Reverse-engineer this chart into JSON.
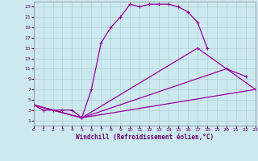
{
  "background_color": "#cce9f0",
  "line_color": "#990099",
  "marker": "+",
  "xlabel": "Windchill (Refroidissement éolien,°C)",
  "xlabel_color": "#660066",
  "tick_color": "#660066",
  "xlim": [
    0,
    23
  ],
  "ylim": [
    0,
    24
  ],
  "xticks": [
    0,
    1,
    2,
    3,
    4,
    5,
    6,
    7,
    8,
    9,
    10,
    11,
    12,
    13,
    14,
    15,
    16,
    17,
    18,
    19,
    20,
    21,
    22,
    23
  ],
  "yticks": [
    1,
    3,
    5,
    7,
    9,
    11,
    13,
    15,
    17,
    19,
    21,
    23
  ],
  "grid_color": "#aacccc",
  "lines_data": [
    {
      "x": [
        0,
        1,
        2,
        3,
        4,
        5,
        6,
        7,
        8,
        9,
        10,
        11,
        12,
        13,
        14,
        15,
        16,
        17,
        18
      ],
      "y": [
        4,
        3,
        3,
        3,
        3,
        1.5,
        7,
        16,
        19,
        21,
        23.5,
        23,
        23.5,
        23.5,
        23.5,
        23,
        22,
        20,
        15
      ],
      "has_markers": true
    },
    {
      "x": [
        0,
        5,
        17,
        23
      ],
      "y": [
        4,
        1.5,
        15,
        7
      ],
      "has_markers": true
    },
    {
      "x": [
        0,
        5,
        20,
        22
      ],
      "y": [
        4,
        1.5,
        11,
        9.5
      ],
      "has_markers": true
    },
    {
      "x": [
        0,
        5,
        23
      ],
      "y": [
        4,
        1.5,
        7
      ],
      "has_markers": false
    }
  ]
}
